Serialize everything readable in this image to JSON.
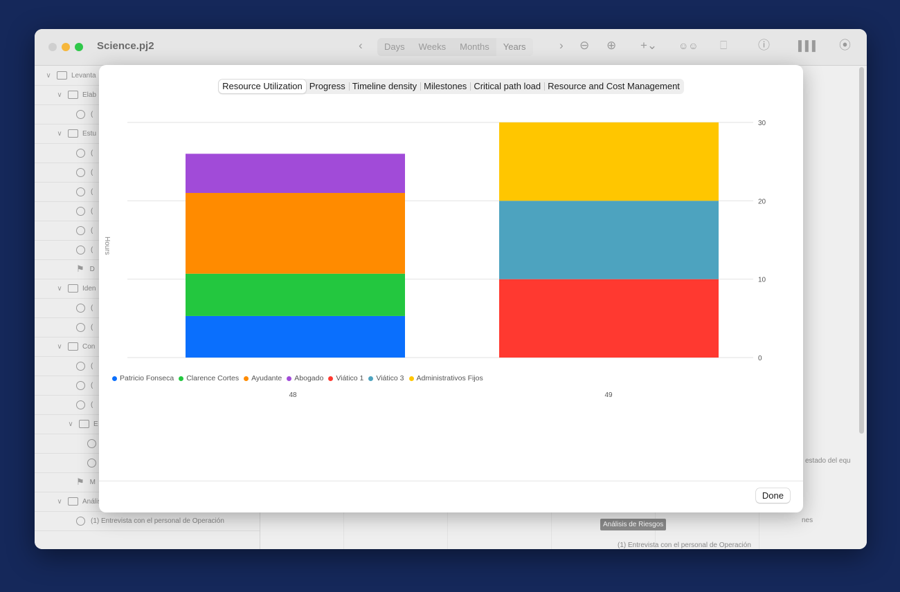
{
  "window": {
    "title": "Science.pj2",
    "toolbar": {
      "zoom_segments": [
        "Days",
        "Weeks",
        "Months",
        "Years"
      ],
      "active_segment": "Years",
      "icons": [
        "chevron-left-icon",
        "chevron-right-icon",
        "zoom-out-icon",
        "zoom-in-icon",
        "add-icon",
        "people-icon",
        "trash-icon",
        "info-icon",
        "chart-icon",
        "gauge-icon"
      ]
    },
    "sidebar": {
      "rows": [
        {
          "kind": "group",
          "label": "Levanta"
        },
        {
          "kind": "group",
          "label": "Elab"
        },
        {
          "kind": "task",
          "label": "("
        },
        {
          "kind": "group",
          "label": "Estu"
        },
        {
          "kind": "task",
          "label": "("
        },
        {
          "kind": "task",
          "label": "("
        },
        {
          "kind": "task",
          "label": "("
        },
        {
          "kind": "task",
          "label": "("
        },
        {
          "kind": "task",
          "label": "("
        },
        {
          "kind": "task",
          "label": "("
        },
        {
          "kind": "milestone",
          "label": "D"
        },
        {
          "kind": "group",
          "label": "Iden"
        },
        {
          "kind": "task",
          "label": "("
        },
        {
          "kind": "task",
          "label": "("
        },
        {
          "kind": "group",
          "label": "Con"
        },
        {
          "kind": "task",
          "label": "("
        },
        {
          "kind": "task",
          "label": "("
        },
        {
          "kind": "task",
          "label": "("
        },
        {
          "kind": "group",
          "label": "E"
        },
        {
          "kind": "task",
          "label": ""
        },
        {
          "kind": "task",
          "label": ""
        },
        {
          "kind": "milestone",
          "label": "M"
        },
        {
          "kind": "group",
          "label": "Análisis de Riesgos"
        },
        {
          "kind": "task",
          "label": "(1) Entrevista con el personal de Operación"
        }
      ]
    },
    "timeline_texts": {
      "estado": "l estado del equ",
      "nes": "nes",
      "badge": "Análisis de Riesgos",
      "entrevista": "(1) Entrevista con el personal de Operación"
    }
  },
  "sheet": {
    "tabs": [
      "Resource Utilization",
      "Progress",
      "Timeline density",
      "Milestones",
      "Critical path load",
      "Resource and Cost Management"
    ],
    "active_tab": "Resource Utilization",
    "done_label": "Done"
  },
  "chart_data": {
    "type": "bar",
    "stacked": true,
    "categories": [
      "48",
      "49"
    ],
    "ylabel": "Hours",
    "ylim": [
      0,
      30
    ],
    "yticks": [
      "0",
      "10",
      "20",
      "30"
    ],
    "y_axis_side": "right",
    "legend_placement": "bottom-left",
    "series": [
      {
        "name": "Patricio Fonseca",
        "color": "#0a6ffd",
        "values": [
          5.3,
          0
        ]
      },
      {
        "name": "Clarence Cortes",
        "color": "#23c73f",
        "values": [
          5.4,
          0
        ]
      },
      {
        "name": "Ayudante",
        "color": "#ff8b00",
        "values": [
          10.3,
          0
        ]
      },
      {
        "name": "Abogado",
        "color": "#a14bd8",
        "values": [
          5,
          0
        ]
      },
      {
        "name": "Viático 1",
        "color": "#ff3930",
        "values": [
          0,
          10
        ]
      },
      {
        "name": "Viático 3",
        "color": "#4da3bf",
        "values": [
          0,
          10
        ]
      },
      {
        "name": "Administrativos Fijos",
        "color": "#ffc600",
        "values": [
          0,
          10
        ]
      }
    ]
  }
}
